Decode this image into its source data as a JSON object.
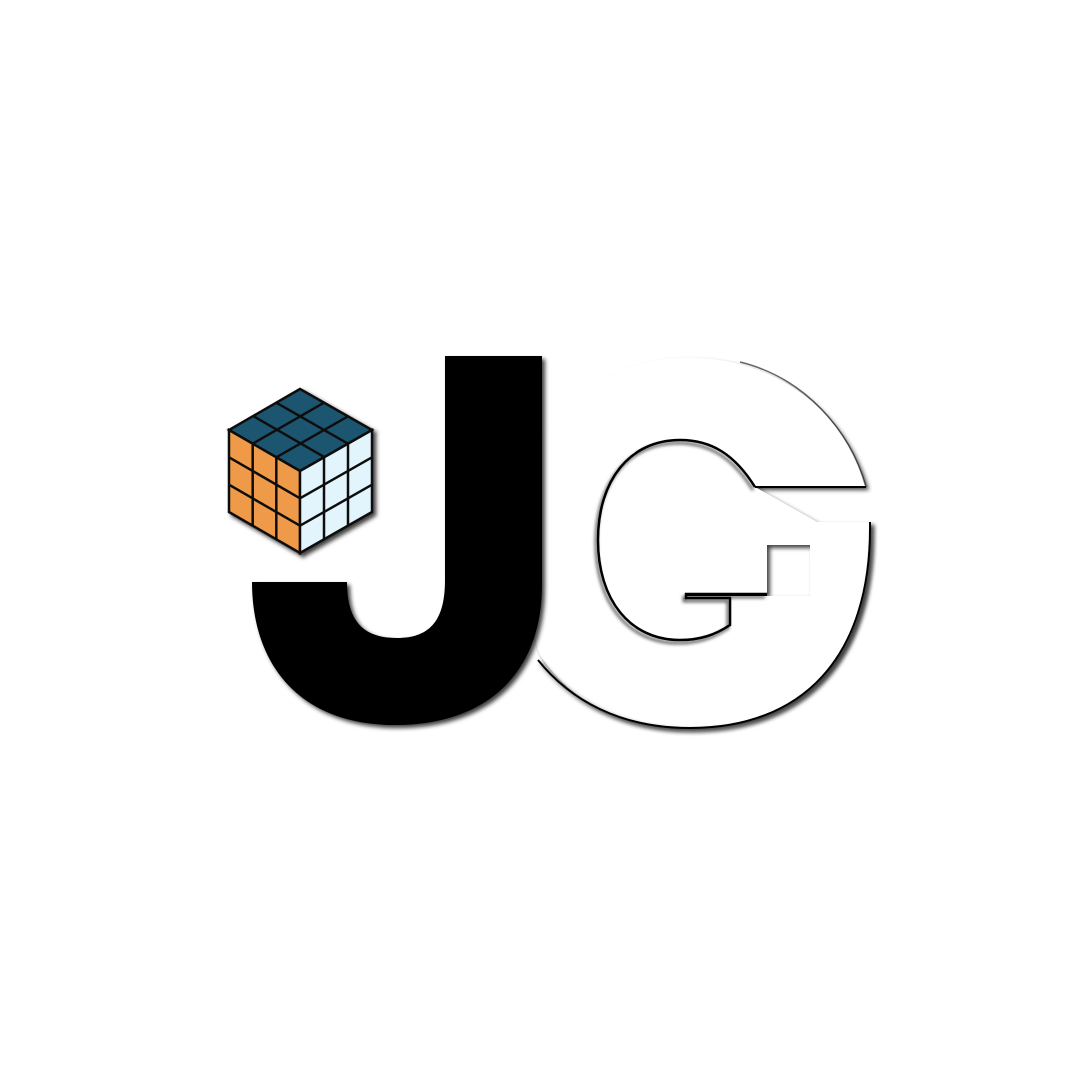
{
  "logo": {
    "monogram": "JG",
    "letters": [
      "J",
      "G"
    ],
    "colors": {
      "background": "#ffffff",
      "j_fill": "#000000",
      "g_fill": "#ffffff",
      "cube_top": "#1f5470",
      "cube_left": "#ef9a4a",
      "cube_right": "#e2f4fc",
      "cube_stroke": "#111111"
    }
  }
}
